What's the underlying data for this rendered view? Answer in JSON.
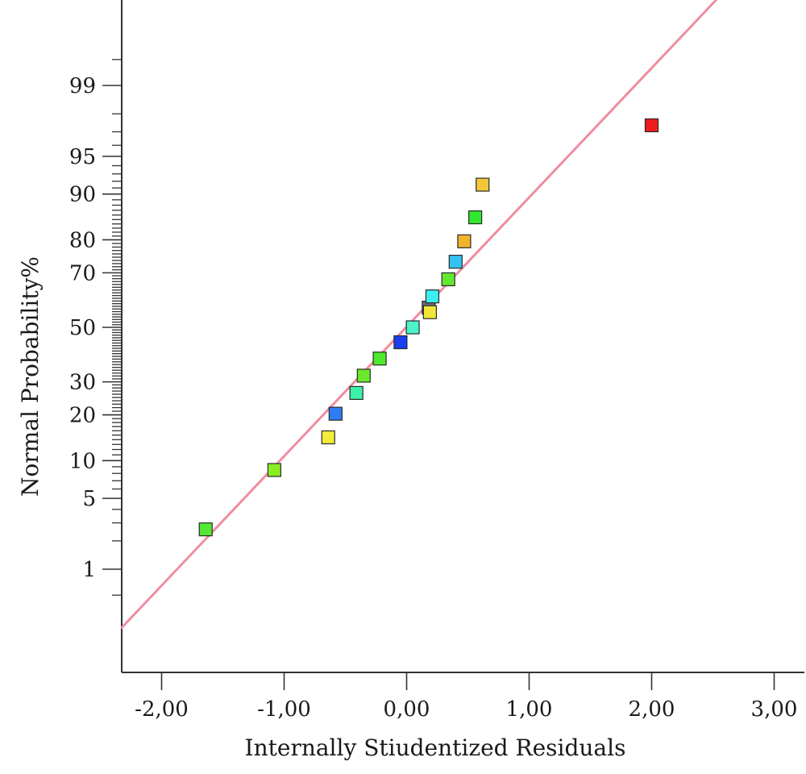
{
  "chart_data": {
    "type": "scatter",
    "xlabel": "Internally Stiudentized Residuals",
    "ylabel": "Normal Probability%",
    "xlim": [
      -2.33,
      3.25
    ],
    "x_ticks": [
      {
        "value": -2,
        "label": "-2,00"
      },
      {
        "value": -1,
        "label": "-1,00"
      },
      {
        "value": 0,
        "label": "0,00"
      },
      {
        "value": 1,
        "label": "1,00"
      },
      {
        "value": 2,
        "label": "2,00"
      },
      {
        "value": 3,
        "label": "3,00"
      }
    ],
    "y_scale": "normal-probability",
    "y_labeled_ticks": [
      {
        "value": 1,
        "label": "1"
      },
      {
        "value": 5,
        "label": "5"
      },
      {
        "value": 10,
        "label": "10"
      },
      {
        "value": 20,
        "label": "20"
      },
      {
        "value": 30,
        "label": "30"
      },
      {
        "value": 50,
        "label": "50"
      },
      {
        "value": 70,
        "label": "70"
      },
      {
        "value": 80,
        "label": "80"
      },
      {
        "value": 90,
        "label": "90"
      },
      {
        "value": 95,
        "label": "95"
      },
      {
        "value": 99,
        "label": "99"
      }
    ],
    "y_minor_ticks": [
      0.5,
      2,
      3,
      4,
      6,
      7,
      8,
      9,
      11,
      12,
      13,
      14,
      15,
      16,
      17,
      18,
      19,
      21,
      22,
      23,
      24,
      25,
      26,
      27,
      28,
      29,
      31,
      32,
      33,
      34,
      35,
      36,
      37,
      38,
      39,
      40,
      41,
      42,
      43,
      44,
      45,
      46,
      47,
      48,
      49,
      51,
      52,
      53,
      54,
      55,
      56,
      57,
      58,
      59,
      60,
      61,
      62,
      63,
      64,
      65,
      66,
      67,
      68,
      69,
      71,
      72,
      73,
      74,
      75,
      76,
      77,
      78,
      79,
      81,
      82,
      83,
      84,
      85,
      86,
      87,
      88,
      89,
      91,
      92,
      93,
      94,
      96,
      97,
      98,
      99.5
    ],
    "reference_line": {
      "color": "#f08ca0",
      "points": [
        [
          -2.33,
          0.19
        ],
        [
          2.64,
          99.95
        ]
      ]
    },
    "points": [
      {
        "x": -1.64,
        "y": 2.6,
        "color": "#52e834"
      },
      {
        "x": -1.08,
        "y": 8.5,
        "color": "#88ee22"
      },
      {
        "x": -0.64,
        "y": 14.5,
        "color": "#f2ec3a"
      },
      {
        "x": -0.58,
        "y": 20.3,
        "color": "#2f7df2"
      },
      {
        "x": -0.41,
        "y": 26.4,
        "color": "#3cf2a8"
      },
      {
        "x": -0.35,
        "y": 32.1,
        "color": "#6ae82c"
      },
      {
        "x": -0.22,
        "y": 38.2,
        "color": "#4ee82c"
      },
      {
        "x": -0.05,
        "y": 44.3,
        "color": "#1a3ef0"
      },
      {
        "x": 0.05,
        "y": 50.0,
        "color": "#4cf2c8"
      },
      {
        "x": 0.18,
        "y": 57.5,
        "color": "#6e6e7a"
      },
      {
        "x": 0.19,
        "y": 55.8,
        "color": "#f2e63a"
      },
      {
        "x": 0.21,
        "y": 61.7,
        "color": "#3aeef2"
      },
      {
        "x": 0.34,
        "y": 67.8,
        "color": "#62e830"
      },
      {
        "x": 0.4,
        "y": 73.6,
        "color": "#34c2f2"
      },
      {
        "x": 0.47,
        "y": 79.6,
        "color": "#f2b42c"
      },
      {
        "x": 0.56,
        "y": 85.5,
        "color": "#30e830"
      },
      {
        "x": 0.62,
        "y": 91.5,
        "color": "#f2c83a"
      },
      {
        "x": 2.0,
        "y": 97.4,
        "color": "#ee1c1c"
      }
    ]
  }
}
